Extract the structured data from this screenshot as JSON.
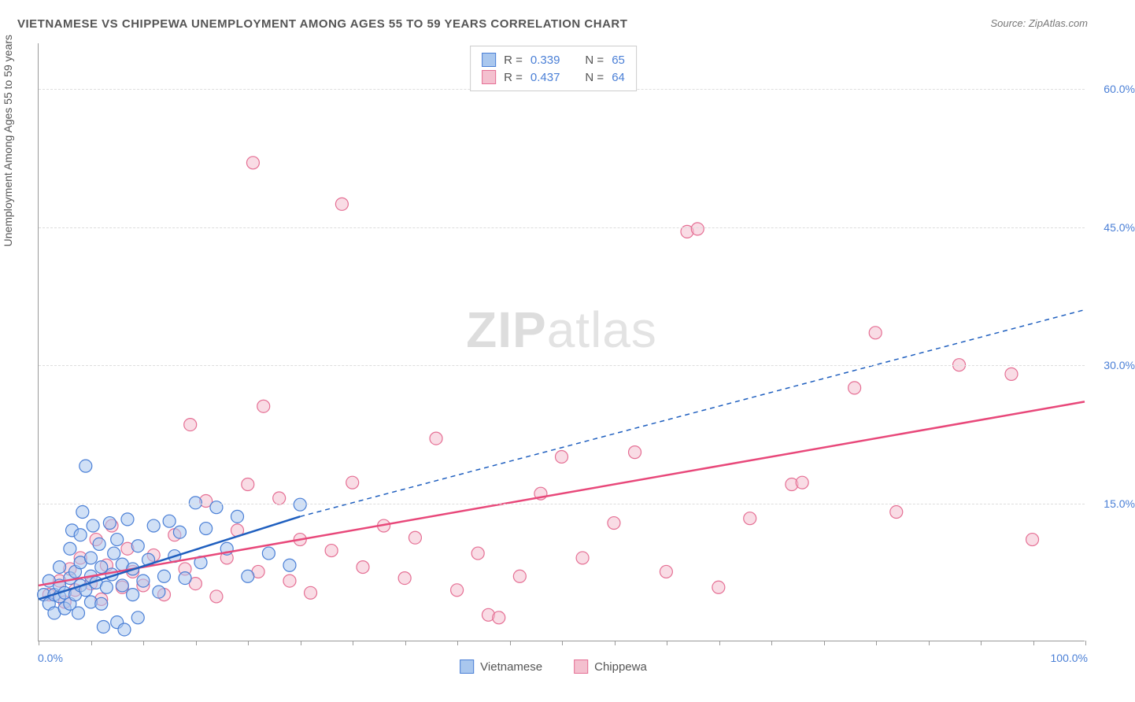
{
  "title": "VIETNAMESE VS CHIPPEWA UNEMPLOYMENT AMONG AGES 55 TO 59 YEARS CORRELATION CHART",
  "source": "Source: ZipAtlas.com",
  "watermark_zip": "ZIP",
  "watermark_atlas": "atlas",
  "y_axis_title": "Unemployment Among Ages 55 to 59 years",
  "chart": {
    "type": "scatter",
    "xlim": [
      0,
      100
    ],
    "ylim": [
      0,
      65
    ],
    "x_min_label": "0.0%",
    "x_max_label": "100.0%",
    "x_ticks": [
      0,
      5,
      10,
      15,
      20,
      25,
      30,
      35,
      40,
      45,
      50,
      55,
      60,
      65,
      70,
      75,
      80,
      85,
      90,
      95,
      100
    ],
    "y_gridlines": [
      15,
      30,
      45,
      60
    ],
    "y_tick_labels": [
      "15.0%",
      "30.0%",
      "45.0%",
      "60.0%"
    ],
    "background_color": "#ffffff",
    "grid_color": "#dddddd",
    "axis_color": "#999999",
    "label_color": "#4a7fd6"
  },
  "series": {
    "vietnamese": {
      "label": "Vietnamese",
      "R_label": "R =",
      "R_value": "0.339",
      "N_label": "N =",
      "N_value": "65",
      "fill": "#a9c7ee",
      "stroke": "#4a7fd6",
      "fill_opacity": 0.55,
      "marker_radius": 8,
      "trend_color": "#1f5fbf",
      "trend_width": 2.5,
      "trend_solid": {
        "x1": 0,
        "y1": 4.5,
        "x2": 25,
        "y2": 13.5
      },
      "trend_dash": {
        "x1": 25,
        "y1": 13.5,
        "x2": 100,
        "y2": 36
      },
      "points": [
        [
          0.5,
          5
        ],
        [
          1,
          4
        ],
        [
          1,
          6.5
        ],
        [
          1.5,
          3
        ],
        [
          1.5,
          5
        ],
        [
          2,
          4.8
        ],
        [
          2,
          6
        ],
        [
          2,
          8
        ],
        [
          2.5,
          3.5
        ],
        [
          2.5,
          5.2
        ],
        [
          3,
          4
        ],
        [
          3,
          6.8
        ],
        [
          3,
          10
        ],
        [
          3.2,
          12
        ],
        [
          3.5,
          5
        ],
        [
          3.5,
          7.5
        ],
        [
          3.8,
          3
        ],
        [
          4,
          6
        ],
        [
          4,
          8.5
        ],
        [
          4,
          11.5
        ],
        [
          4.2,
          14
        ],
        [
          4.5,
          19
        ],
        [
          4.5,
          5.5
        ],
        [
          5,
          4.2
        ],
        [
          5,
          7
        ],
        [
          5,
          9
        ],
        [
          5.2,
          12.5
        ],
        [
          5.5,
          6.3
        ],
        [
          5.8,
          10.5
        ],
        [
          6,
          4
        ],
        [
          6,
          8
        ],
        [
          6.2,
          1.5
        ],
        [
          6.5,
          5.8
        ],
        [
          6.8,
          12.8
        ],
        [
          7,
          7.2
        ],
        [
          7.2,
          9.5
        ],
        [
          7.5,
          2
        ],
        [
          7.5,
          11
        ],
        [
          8,
          6
        ],
        [
          8,
          8.3
        ],
        [
          8.2,
          1.2
        ],
        [
          8.5,
          13.2
        ],
        [
          9,
          5
        ],
        [
          9,
          7.8
        ],
        [
          9.5,
          10.3
        ],
        [
          9.5,
          2.5
        ],
        [
          10,
          6.5
        ],
        [
          10.5,
          8.8
        ],
        [
          11,
          12.5
        ],
        [
          11.5,
          5.3
        ],
        [
          12,
          7
        ],
        [
          12.5,
          13
        ],
        [
          13,
          9.2
        ],
        [
          13.5,
          11.8
        ],
        [
          14,
          6.8
        ],
        [
          15,
          15
        ],
        [
          15.5,
          8.5
        ],
        [
          16,
          12.2
        ],
        [
          17,
          14.5
        ],
        [
          18,
          10
        ],
        [
          19,
          13.5
        ],
        [
          20,
          7
        ],
        [
          22,
          9.5
        ],
        [
          24,
          8.2
        ],
        [
          25,
          14.8
        ]
      ]
    },
    "chippewa": {
      "label": "Chippewa",
      "R_label": "R =",
      "R_value": "0.437",
      "N_label": "N =",
      "N_value": "64",
      "fill": "#f4c0cf",
      "stroke": "#e56f94",
      "fill_opacity": 0.55,
      "marker_radius": 8,
      "trend_color": "#e8487a",
      "trend_width": 2.5,
      "trend": {
        "x1": 0,
        "y1": 6,
        "x2": 100,
        "y2": 26
      },
      "points": [
        [
          1,
          5
        ],
        [
          2,
          6.5
        ],
        [
          2.5,
          4.2
        ],
        [
          3,
          7.8
        ],
        [
          3.5,
          5.5
        ],
        [
          4,
          9
        ],
        [
          5,
          6.2
        ],
        [
          5.5,
          11
        ],
        [
          6,
          4.5
        ],
        [
          6.5,
          8.2
        ],
        [
          7,
          12.5
        ],
        [
          8,
          5.8
        ],
        [
          8.5,
          10
        ],
        [
          9,
          7.5
        ],
        [
          10,
          6
        ],
        [
          11,
          9.3
        ],
        [
          12,
          5
        ],
        [
          13,
          11.5
        ],
        [
          14,
          7.8
        ],
        [
          14.5,
          23.5
        ],
        [
          15,
          6.2
        ],
        [
          16,
          15.2
        ],
        [
          17,
          4.8
        ],
        [
          18,
          9
        ],
        [
          19,
          12
        ],
        [
          20,
          17
        ],
        [
          20.5,
          52
        ],
        [
          21,
          7.5
        ],
        [
          21.5,
          25.5
        ],
        [
          23,
          15.5
        ],
        [
          24,
          6.5
        ],
        [
          25,
          11
        ],
        [
          26,
          5.2
        ],
        [
          28,
          9.8
        ],
        [
          29,
          47.5
        ],
        [
          30,
          17.2
        ],
        [
          31,
          8
        ],
        [
          33,
          12.5
        ],
        [
          35,
          6.8
        ],
        [
          36,
          11.2
        ],
        [
          38,
          22
        ],
        [
          40,
          5.5
        ],
        [
          42,
          9.5
        ],
        [
          43,
          2.8
        ],
        [
          44,
          2.5
        ],
        [
          46,
          7
        ],
        [
          48,
          16
        ],
        [
          50,
          20
        ],
        [
          52,
          9
        ],
        [
          55,
          12.8
        ],
        [
          57,
          20.5
        ],
        [
          60,
          7.5
        ],
        [
          62,
          44.5
        ],
        [
          63,
          44.8
        ],
        [
          65,
          5.8
        ],
        [
          68,
          13.3
        ],
        [
          72,
          17
        ],
        [
          73,
          17.2
        ],
        [
          78,
          27.5
        ],
        [
          80,
          33.5
        ],
        [
          82,
          14
        ],
        [
          88,
          30
        ],
        [
          93,
          29
        ],
        [
          95,
          11
        ]
      ]
    }
  }
}
